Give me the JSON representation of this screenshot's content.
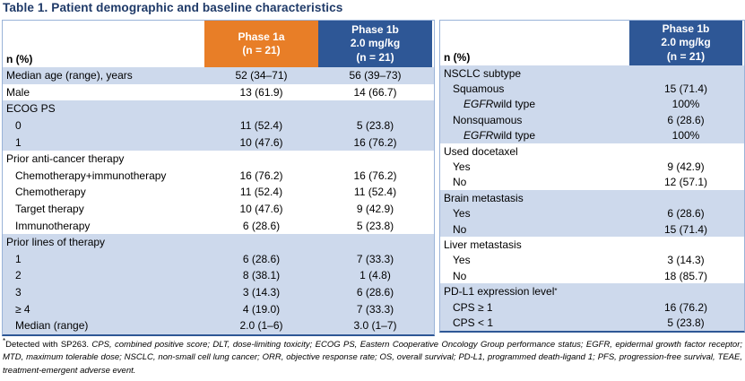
{
  "title": "Table 1. Patient demographic and baseline characteristics",
  "colors": {
    "title_text": "#1F3A68",
    "phase1a_header": "#E87E27",
    "phase1b_header": "#2E5796",
    "shaded_row": "#CDD9EC",
    "table_border": "#9AB3D8"
  },
  "tables": [
    {
      "id": "left",
      "header": {
        "label": "n (%)",
        "columns": [
          {
            "name": "column-header-phase-1a",
            "text": "Phase 1a\n(n = 21)",
            "bg": "#E87E27"
          },
          {
            "name": "column-header-phase-1b",
            "text": "Phase 1b\n2.0 mg/kg\n(n = 21)",
            "bg": "#2E5796"
          }
        ]
      },
      "rows": [
        {
          "label": "Median age (range), years",
          "indent": 0,
          "values": [
            "52 (34–71)",
            "56 (39–73)"
          ],
          "shaded": true
        },
        {
          "label": "Male",
          "indent": 0,
          "values": [
            "13 (61.9)",
            "14 (66.7)"
          ],
          "shaded": false
        },
        {
          "label": "ECOG PS",
          "indent": 0,
          "values": [
            "",
            ""
          ],
          "shaded": true
        },
        {
          "label": "0",
          "indent": 1,
          "values": [
            "11 (52.4)",
            "5 (23.8)"
          ],
          "shaded": true
        },
        {
          "label": "1",
          "indent": 1,
          "values": [
            "10 (47.6)",
            "16 (76.2)"
          ],
          "shaded": true
        },
        {
          "label": "Prior anti-cancer therapy",
          "indent": 0,
          "values": [
            "",
            ""
          ],
          "shaded": false
        },
        {
          "label": "Chemotherapy+immunotherapy",
          "indent": 1,
          "values": [
            "16 (76.2)",
            "16 (76.2)"
          ],
          "shaded": false
        },
        {
          "label": "Chemotherapy",
          "indent": 1,
          "values": [
            "11 (52.4)",
            "11 (52.4)"
          ],
          "shaded": false
        },
        {
          "label": "Target therapy",
          "indent": 1,
          "values": [
            "10 (47.6)",
            "9 (42.9)"
          ],
          "shaded": false
        },
        {
          "label": "Immunotherapy",
          "indent": 1,
          "values": [
            "6 (28.6)",
            "5 (23.8)"
          ],
          "shaded": false
        },
        {
          "label": "Prior lines of therapy",
          "indent": 0,
          "values": [
            "",
            ""
          ],
          "shaded": true
        },
        {
          "label": "1",
          "indent": 1,
          "values": [
            "6 (28.6)",
            "7 (33.3)"
          ],
          "shaded": true
        },
        {
          "label": "2",
          "indent": 1,
          "values": [
            "8 (38.1)",
            "1 (4.8)"
          ],
          "shaded": true
        },
        {
          "label": "3",
          "indent": 1,
          "values": [
            "3 (14.3)",
            "6 (28.6)"
          ],
          "shaded": true
        },
        {
          "label": "≥ 4",
          "indent": 1,
          "values": [
            "4 (19.0)",
            "7 (33.3)"
          ],
          "shaded": true
        },
        {
          "label": "Median (range)",
          "indent": 1,
          "values": [
            "2.0 (1–6)",
            "3.0 (1–7)"
          ],
          "shaded": true
        }
      ]
    },
    {
      "id": "right",
      "header": {
        "label": "n (%)",
        "columns": [
          {
            "name": "column-header-phase-1b",
            "text": "Phase 1b\n2.0 mg/kg\n(n = 21)",
            "bg": "#2E5796"
          }
        ]
      },
      "rows": [
        {
          "label": "NSCLC subtype",
          "indent": 0,
          "values": [
            ""
          ],
          "shaded": true
        },
        {
          "label": "Squamous",
          "indent": 1,
          "values": [
            "15 (71.4)"
          ],
          "shaded": true
        },
        {
          "label_parts": [
            {
              "text": "EGFR",
              "italic": true
            },
            {
              "text": " wild type"
            }
          ],
          "indent": 2,
          "values": [
            "100%"
          ],
          "shaded": true
        },
        {
          "label": "Nonsquamous",
          "indent": 1,
          "values": [
            "6 (28.6)"
          ],
          "shaded": true
        },
        {
          "label_parts": [
            {
              "text": "EGFR",
              "italic": true
            },
            {
              "text": " wild type"
            }
          ],
          "indent": 2,
          "values": [
            "100%"
          ],
          "shaded": true
        },
        {
          "label": "Used docetaxel",
          "indent": 0,
          "values": [
            ""
          ],
          "shaded": false
        },
        {
          "label": "Yes",
          "indent": 1,
          "values": [
            "9 (42.9)"
          ],
          "shaded": false
        },
        {
          "label": "No",
          "indent": 1,
          "values": [
            "12 (57.1)"
          ],
          "shaded": false
        },
        {
          "label": "Brain metastasis",
          "indent": 0,
          "values": [
            ""
          ],
          "shaded": true
        },
        {
          "label": "Yes",
          "indent": 1,
          "values": [
            "6 (28.6)"
          ],
          "shaded": true
        },
        {
          "label": "No",
          "indent": 1,
          "values": [
            "15 (71.4)"
          ],
          "shaded": true
        },
        {
          "label": "Liver metastasis",
          "indent": 0,
          "values": [
            ""
          ],
          "shaded": false
        },
        {
          "label": "Yes",
          "indent": 1,
          "values": [
            "3 (14.3)"
          ],
          "shaded": false
        },
        {
          "label": "No",
          "indent": 1,
          "values": [
            "18 (85.7)"
          ],
          "shaded": false
        },
        {
          "label_parts": [
            {
              "text": "PD-L1 expression level"
            },
            {
              "text": "*",
              "sup": true
            }
          ],
          "indent": 0,
          "values": [
            ""
          ],
          "shaded": true
        },
        {
          "label": "CPS ≥ 1",
          "indent": 1,
          "values": [
            "16 (76.2)"
          ],
          "shaded": true
        },
        {
          "label": "CPS < 1",
          "indent": 1,
          "values": [
            "5 (23.8)"
          ],
          "shaded": true
        }
      ]
    }
  ],
  "footnote": {
    "parts": [
      {
        "text": "*",
        "sup": true
      },
      {
        "text": "Detected with SP263. "
      },
      {
        "text": "CPS, combined positive score; DLT, dose-limiting toxicity; ECOG PS, Eastern Cooperative Oncology Group performance status; EGFR, epidermal growth factor receptor; MTD, maximum tolerable dose; NSCLC, non-small cell lung cancer; ORR, objective response rate; OS, overall survival; PD-L1, programmed death-ligand 1; PFS, progression-free survival, TEAE, treatment-emergent adverse event.",
        "italic": true
      }
    ]
  }
}
